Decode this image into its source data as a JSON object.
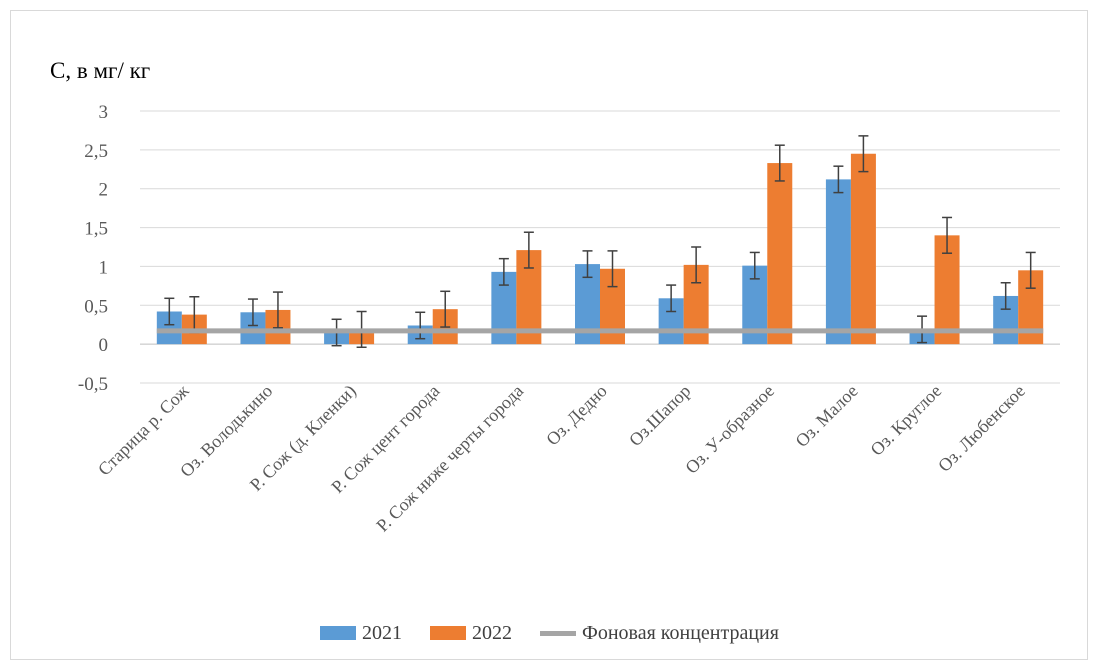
{
  "chart_data": {
    "type": "bar",
    "title": "",
    "ylabel": "С, в мг/ кг",
    "xlabel": "",
    "ylim": [
      -0.5,
      3
    ],
    "yticks": [
      -0.5,
      0,
      0.5,
      1,
      1.5,
      2,
      2.5,
      3
    ],
    "ytick_labels": [
      "-0,5",
      "0",
      "0,5",
      "1",
      "1,5",
      "2",
      "2,5",
      "3"
    ],
    "grid": true,
    "legend_position": "bottom",
    "categories": [
      "Старица р. Сож",
      "Оз. Володькино",
      "Р. Сож  (д. Кленки)",
      "Р. Сож цент города",
      "Р. Сож ниже черты города",
      "Оз. Дедно",
      "Оз.Шапор",
      "Оз. У-образное",
      "Оз. Малое",
      "Оз. Круглое",
      "Оз. Любенское"
    ],
    "series": [
      {
        "name": "2021",
        "color": "#5b9bd5",
        "values": [
          0.42,
          0.41,
          0.15,
          0.24,
          0.93,
          1.03,
          0.59,
          1.01,
          2.12,
          0.19,
          0.62
        ],
        "error": [
          0.17,
          0.17,
          0.17,
          0.17,
          0.17,
          0.17,
          0.17,
          0.17,
          0.17,
          0.17,
          0.17
        ]
      },
      {
        "name": "2022",
        "color": "#ed7d31",
        "values": [
          0.38,
          0.44,
          0.19,
          0.45,
          1.21,
          0.97,
          1.02,
          2.33,
          2.45,
          1.4,
          0.95
        ],
        "error": [
          0.23,
          0.23,
          0.23,
          0.23,
          0.23,
          0.23,
          0.23,
          0.23,
          0.23,
          0.23,
          0.23
        ]
      }
    ],
    "reference_line": {
      "name": "Фоновая концентрация",
      "color": "#a5a5a5",
      "value": 0.17
    }
  }
}
